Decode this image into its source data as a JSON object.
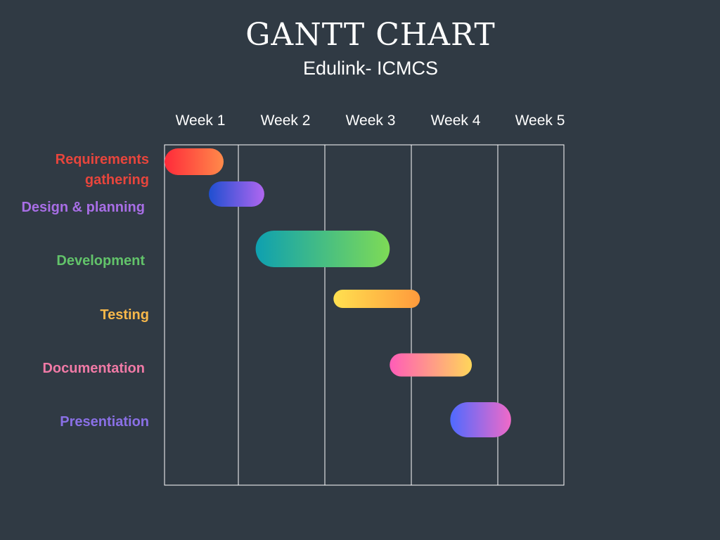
{
  "title": "GANTT CHART",
  "subtitle": "Edulink- ICMCS",
  "chart_data": {
    "type": "gantt",
    "x_unit": "week",
    "x_range": [
      0,
      5
    ],
    "x_ticks": [
      "Week 1",
      "Week 2",
      "Week 3",
      "Week 4",
      "Week 5"
    ],
    "grid": true,
    "tasks": [
      {
        "label": "Requirements gathering",
        "start": 0.0,
        "end": 0.8,
        "color_from": "#ff2a3a",
        "color_to": "#ff8a4a",
        "label_color": "#e8453c"
      },
      {
        "label": "Design & planning",
        "start": 0.6,
        "end": 1.3,
        "color_from": "#1f4fd0",
        "color_to": "#b066f0",
        "label_color": "#a86ee6"
      },
      {
        "label": "Development",
        "start": 1.2,
        "end": 2.75,
        "color_from": "#0ea0b0",
        "color_to": "#7edb56",
        "label_color": "#62c36a"
      },
      {
        "label": "Testing",
        "start": 2.1,
        "end": 3.1,
        "color_from": "#ffe050",
        "color_to": "#ff9a3c",
        "label_color": "#f8b84a"
      },
      {
        "label": "Documentation",
        "start": 2.75,
        "end": 3.7,
        "color_from": "#ff5cb8",
        "color_to": "#ffd65a",
        "label_color": "#f07aa6"
      },
      {
        "label": "Presentiation",
        "start": 3.45,
        "end": 4.2,
        "color_from": "#4f6aff",
        "color_to": "#f06ac8",
        "label_color": "#8a70e6"
      }
    ]
  }
}
